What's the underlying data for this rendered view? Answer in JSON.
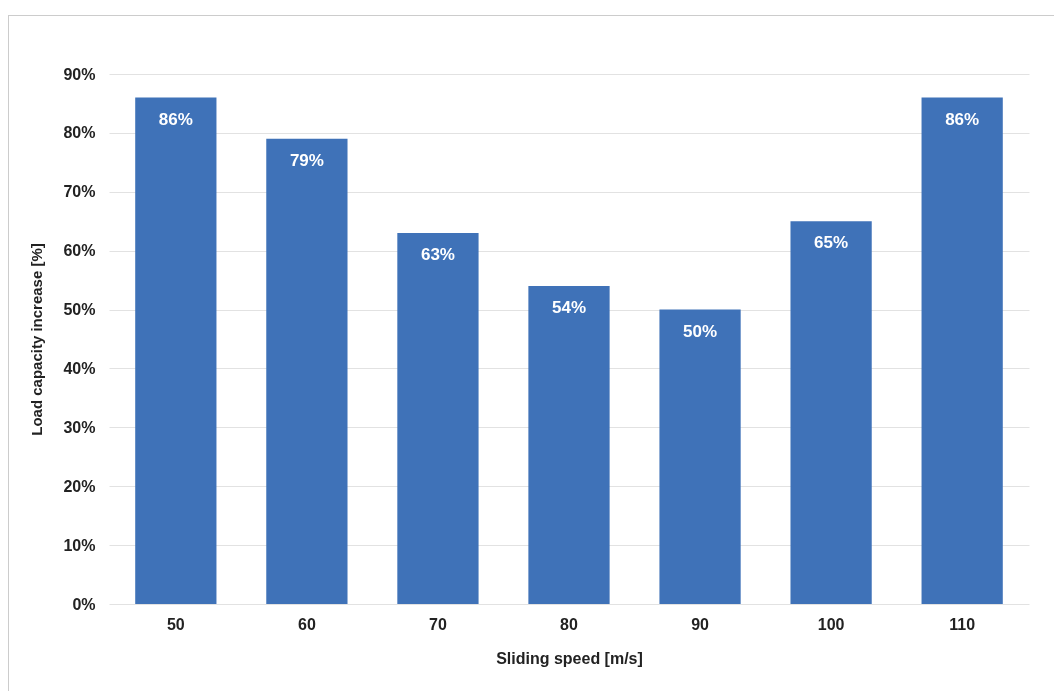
{
  "chart_data": {
    "type": "bar",
    "xlabel": "Sliding speed [m/s]",
    "ylabel": "Load capacity increase [%]",
    "categories": [
      "50",
      "60",
      "70",
      "80",
      "90",
      "100",
      "110"
    ],
    "values": [
      86,
      79,
      63,
      54,
      50,
      65,
      86
    ],
    "value_labels": [
      "86%",
      "79%",
      "63%",
      "54%",
      "50%",
      "65%",
      "86%"
    ],
    "color": "#3f72b8",
    "ylim": [
      0,
      90
    ],
    "yticks": [
      {
        "value": 0,
        "label": "0%"
      },
      {
        "value": 10,
        "label": "10%"
      },
      {
        "value": 20,
        "label": "20%"
      },
      {
        "value": 30,
        "label": "30%"
      },
      {
        "value": 40,
        "label": "40%"
      },
      {
        "value": 50,
        "label": "50%"
      },
      {
        "value": 60,
        "label": "60%"
      },
      {
        "value": 70,
        "label": "70%"
      },
      {
        "value": 80,
        "label": "80%"
      },
      {
        "value": 90,
        "label": "90%"
      }
    ],
    "grid": "y"
  }
}
